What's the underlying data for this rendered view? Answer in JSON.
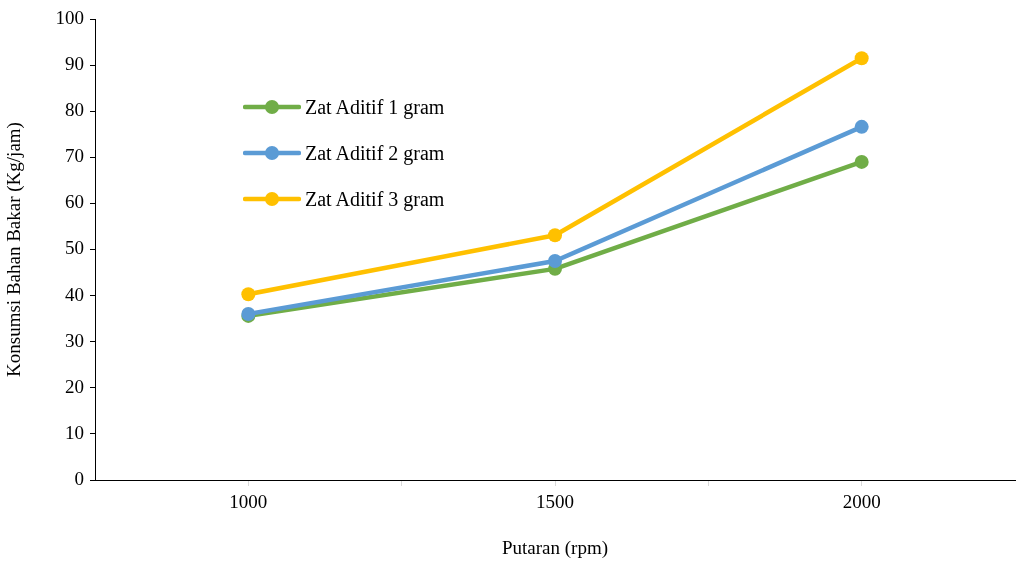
{
  "chart_data": {
    "type": "line",
    "xlabel": "Putaran (rpm)",
    "ylabel": "Konsumsi Bahan Bakar (Kg/jam)",
    "x": [
      1000,
      1500,
      2000
    ],
    "xlim": [
      750,
      2250
    ],
    "xticks": [
      1000,
      {
        "value": 1250,
        "label": null
      },
      1500,
      {
        "value": 1750,
        "label": null
      },
      2000
    ],
    "ylim": [
      0,
      100
    ],
    "yticks": [
      0,
      10,
      20,
      30,
      40,
      50,
      60,
      70,
      80,
      90,
      100
    ],
    "grid": false,
    "legend": "top left",
    "marker": "circle",
    "line_style": "solid",
    "series": [
      {
        "name": "Zat Aditif 1 gram",
        "color": "#70ad47",
        "values": [
          35.6,
          45.8,
          69.0
        ]
      },
      {
        "name": "Zat Aditif 2 gram",
        "color": "#5b9bd5",
        "values": [
          36.0,
          47.5,
          76.6
        ]
      },
      {
        "name": "Zat Aditif 3 gram",
        "color": "#ffc000",
        "values": [
          40.3,
          53.1,
          91.5
        ]
      }
    ]
  }
}
